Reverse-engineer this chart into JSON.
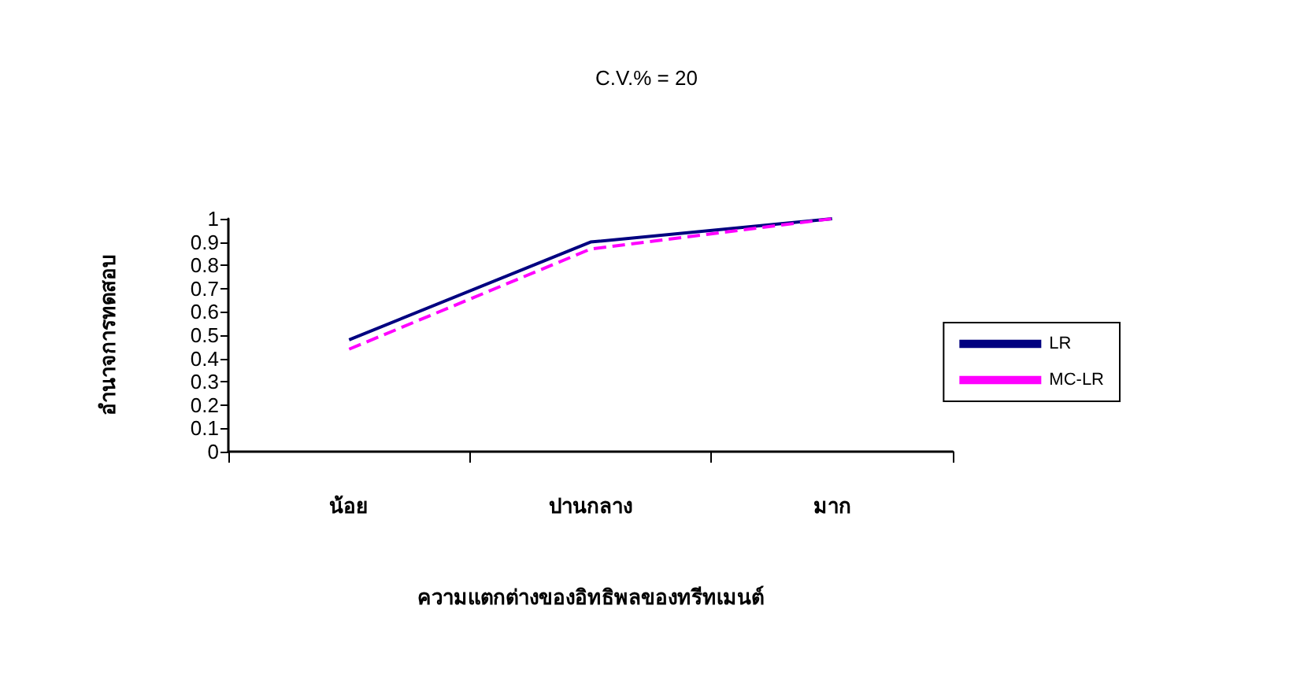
{
  "chart_data": {
    "type": "line",
    "title": "C.V.% = 20",
    "xlabel": "ความแตกต่างของอิทธิพลของทรีทเมนต์",
    "ylabel": "อำนาจการทดสอบ",
    "categories": [
      "น้อย",
      "ปานกลาง",
      "มาก"
    ],
    "series": [
      {
        "name": "LR",
        "color": "#000080",
        "values": [
          0.48,
          0.9,
          1.0
        ],
        "line_style": "solid"
      },
      {
        "name": "MC-LR",
        "color": "#ff00ff",
        "values": [
          0.44,
          0.87,
          1.0
        ],
        "line_style": "dashed"
      }
    ],
    "ylim": [
      0,
      1
    ],
    "yticks": [
      0,
      0.1,
      0.2,
      0.3,
      0.4,
      0.5,
      0.6,
      0.7,
      0.8,
      0.9,
      1
    ],
    "grid": false,
    "legend": "right",
    "marker": "none"
  }
}
